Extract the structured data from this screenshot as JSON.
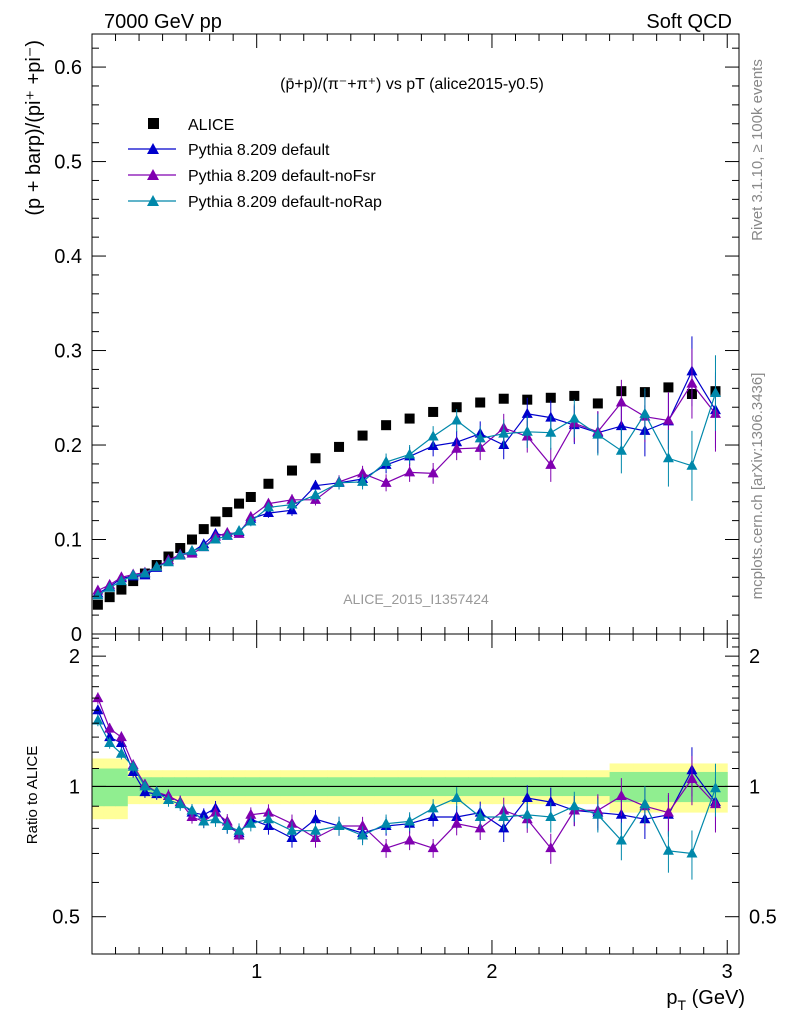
{
  "header": {
    "energy_label": "7000 GeV pp",
    "category_label": "Soft QCD"
  },
  "side_labels": {
    "rivet": "Rivet 3.1.10, ≥ 100k events",
    "mcplots": "mcplots.cern.ch [arXiv:1306.3436]"
  },
  "colors": {
    "alice": "#000000",
    "default": "#0000cc",
    "noFsr": "#8000b0",
    "noRap": "#0088aa",
    "band_inner": "#90ee90",
    "band_outer": "#ffff99"
  },
  "chart_data": [
    {
      "type": "scatter",
      "title": "(p̄+p)/(π⁻+π⁺) vs pT (alice2015-y0.5)",
      "ylabel": "(p + barp)/(pi⁺ +pi⁻)",
      "watermark": "ALICE_2015_I1357424",
      "xlim": [
        0.3,
        3.05
      ],
      "ylim": [
        0,
        0.635
      ],
      "yticks": [
        0,
        0.1,
        0.2,
        0.3,
        0.4,
        0.5,
        0.6
      ],
      "ytick_labels": [
        "0",
        "0.1",
        "0.2",
        "0.3",
        "0.4",
        "0.5",
        "0.6"
      ],
      "legend_position": "top-left",
      "x": [
        0.325,
        0.375,
        0.425,
        0.475,
        0.525,
        0.575,
        0.625,
        0.675,
        0.725,
        0.775,
        0.825,
        0.875,
        0.925,
        0.975,
        1.05,
        1.15,
        1.25,
        1.35,
        1.45,
        1.55,
        1.65,
        1.75,
        1.85,
        1.95,
        2.05,
        2.15,
        2.25,
        2.35,
        2.45,
        2.55,
        2.65,
        2.75,
        2.85,
        2.95
      ],
      "series": [
        {
          "name": "ALICE",
          "marker": "square",
          "values": [
            0.031,
            0.039,
            0.047,
            0.056,
            0.064,
            0.073,
            0.082,
            0.091,
            0.1,
            0.111,
            0.119,
            0.129,
            0.138,
            0.145,
            0.159,
            0.173,
            0.186,
            0.198,
            0.21,
            0.221,
            0.228,
            0.235,
            0.24,
            0.245,
            0.249,
            0.248,
            0.25,
            0.252,
            0.244,
            0.257,
            0.256,
            0.261,
            0.254,
            0.257
          ],
          "errors": [
            0.002,
            0.002,
            0.002,
            0.002,
            0.002,
            0.002,
            0.002,
            0.002,
            0.002,
            0.002,
            0.002,
            0.002,
            0.002,
            0.002,
            0.002,
            0.002,
            0.002,
            0.002,
            0.002,
            0.002,
            0.002,
            0.002,
            0.002,
            0.002,
            0.002,
            0.002,
            0.002,
            0.002,
            0.002,
            0.002,
            0.002,
            0.002,
            0.002,
            0.002
          ]
        },
        {
          "name": "Pythia 8.209 default",
          "marker": "triangle",
          "values": [
            0.043,
            0.05,
            0.059,
            0.061,
            0.062,
            0.07,
            0.078,
            0.084,
            0.087,
            0.095,
            0.106,
            0.104,
            0.108,
            0.122,
            0.128,
            0.131,
            0.157,
            0.16,
            0.164,
            0.179,
            0.188,
            0.199,
            0.203,
            0.212,
            0.2,
            0.233,
            0.229,
            0.221,
            0.213,
            0.22,
            0.215,
            0.225,
            0.278,
            0.237
          ],
          "errors": [
            0.002,
            0.002,
            0.002,
            0.002,
            0.002,
            0.002,
            0.003,
            0.003,
            0.003,
            0.003,
            0.004,
            0.004,
            0.004,
            0.005,
            0.005,
            0.006,
            0.006,
            0.007,
            0.008,
            0.009,
            0.01,
            0.011,
            0.012,
            0.013,
            0.015,
            0.017,
            0.018,
            0.02,
            0.022,
            0.024,
            0.027,
            0.03,
            0.037,
            0.04
          ]
        },
        {
          "name": "Pythia 8.209 default-noFsr",
          "marker": "triangle",
          "values": [
            0.046,
            0.052,
            0.06,
            0.063,
            0.065,
            0.071,
            0.078,
            0.084,
            0.085,
            0.092,
            0.103,
            0.107,
            0.106,
            0.124,
            0.138,
            0.142,
            0.142,
            0.161,
            0.17,
            0.16,
            0.171,
            0.17,
            0.196,
            0.197,
            0.218,
            0.209,
            0.179,
            0.223,
            0.214,
            0.245,
            0.23,
            0.226,
            0.265,
            0.233
          ],
          "errors": [
            0.002,
            0.002,
            0.002,
            0.002,
            0.002,
            0.002,
            0.003,
            0.003,
            0.003,
            0.003,
            0.004,
            0.004,
            0.004,
            0.005,
            0.005,
            0.006,
            0.006,
            0.007,
            0.008,
            0.009,
            0.01,
            0.011,
            0.012,
            0.013,
            0.015,
            0.017,
            0.018,
            0.02,
            0.022,
            0.024,
            0.027,
            0.03,
            0.037,
            0.04
          ]
        },
        {
          "name": "Pythia 8.209 default-noRap",
          "marker": "triangle",
          "values": [
            0.041,
            0.049,
            0.056,
            0.062,
            0.064,
            0.071,
            0.076,
            0.083,
            0.088,
            0.092,
            0.1,
            0.104,
            0.109,
            0.119,
            0.134,
            0.137,
            0.147,
            0.16,
            0.161,
            0.182,
            0.19,
            0.209,
            0.226,
            0.207,
            0.212,
            0.214,
            0.213,
            0.228,
            0.211,
            0.194,
            0.233,
            0.186,
            0.178,
            0.255
          ],
          "errors": [
            0.002,
            0.002,
            0.002,
            0.002,
            0.002,
            0.002,
            0.003,
            0.003,
            0.003,
            0.003,
            0.004,
            0.004,
            0.004,
            0.005,
            0.005,
            0.006,
            0.006,
            0.007,
            0.008,
            0.009,
            0.01,
            0.011,
            0.012,
            0.013,
            0.015,
            0.017,
            0.018,
            0.02,
            0.022,
            0.024,
            0.027,
            0.03,
            0.037,
            0.04
          ]
        }
      ]
    },
    {
      "type": "scatter",
      "ylabel": "Ratio to ALICE",
      "xlabel": "p_T (GeV)",
      "xlim": [
        0.3,
        3.05
      ],
      "ylim": [
        0.41,
        2.25
      ],
      "scale": "log",
      "xticks": [
        1,
        2,
        3
      ],
      "xtick_labels": [
        "1",
        "2",
        "3"
      ],
      "yticks": [
        0.5,
        1,
        2
      ],
      "ytick_labels": [
        "0.5",
        "1",
        "2"
      ],
      "band_inner": [
        0.1,
        0.1,
        0.1,
        0.05,
        0.05,
        0.05,
        0.05,
        0.05,
        0.05,
        0.05,
        0.05,
        0.05,
        0.05,
        0.05,
        0.05,
        0.05,
        0.05,
        0.05,
        0.05,
        0.05,
        0.05,
        0.05,
        0.05,
        0.05,
        0.05,
        0.05,
        0.05,
        0.05,
        0.05,
        0.08,
        0.08,
        0.08,
        0.08,
        0.08
      ],
      "band_outer": [
        0.16,
        0.16,
        0.16,
        0.09,
        0.09,
        0.09,
        0.09,
        0.09,
        0.09,
        0.09,
        0.09,
        0.09,
        0.09,
        0.09,
        0.09,
        0.09,
        0.09,
        0.09,
        0.09,
        0.09,
        0.09,
        0.09,
        0.09,
        0.09,
        0.09,
        0.09,
        0.09,
        0.09,
        0.09,
        0.13,
        0.13,
        0.13,
        0.13,
        0.13
      ],
      "series": [
        {
          "name": "Pythia 8.209 default",
          "values": [
            1.5,
            1.3,
            1.26,
            1.08,
            0.97,
            0.96,
            0.95,
            0.92,
            0.87,
            0.86,
            0.89,
            0.81,
            0.78,
            0.84,
            0.81,
            0.76,
            0.84,
            0.81,
            0.78,
            0.81,
            0.82,
            0.85,
            0.85,
            0.87,
            0.8,
            0.94,
            0.92,
            0.88,
            0.87,
            0.86,
            0.84,
            0.86,
            1.09,
            0.92
          ]
        },
        {
          "name": "Pythia 8.209 default-noFsr",
          "values": [
            1.6,
            1.36,
            1.3,
            1.12,
            1.01,
            0.97,
            0.95,
            0.92,
            0.85,
            0.83,
            0.87,
            0.83,
            0.77,
            0.86,
            0.87,
            0.82,
            0.76,
            0.81,
            0.81,
            0.72,
            0.75,
            0.72,
            0.82,
            0.8,
            0.88,
            0.84,
            0.72,
            0.88,
            0.88,
            0.95,
            0.9,
            0.87,
            1.04,
            0.91
          ]
        },
        {
          "name": "Pythia 8.209 default-noRap",
          "values": [
            1.42,
            1.26,
            1.19,
            1.11,
            1.0,
            0.97,
            0.93,
            0.91,
            0.88,
            0.83,
            0.84,
            0.81,
            0.79,
            0.82,
            0.84,
            0.79,
            0.79,
            0.81,
            0.77,
            0.82,
            0.83,
            0.89,
            0.94,
            0.85,
            0.85,
            0.86,
            0.85,
            0.9,
            0.86,
            0.75,
            0.91,
            0.71,
            0.7,
            0.99
          ]
        }
      ],
      "ratio_errors": [
        0.03,
        0.03,
        0.03,
        0.03,
        0.03,
        0.03,
        0.035,
        0.035,
        0.035,
        0.035,
        0.04,
        0.04,
        0.04,
        0.04,
        0.045,
        0.05,
        0.05,
        0.05,
        0.05,
        0.05,
        0.05,
        0.05,
        0.06,
        0.06,
        0.07,
        0.07,
        0.08,
        0.08,
        0.09,
        0.1,
        0.1,
        0.11,
        0.13,
        0.14
      ]
    }
  ]
}
